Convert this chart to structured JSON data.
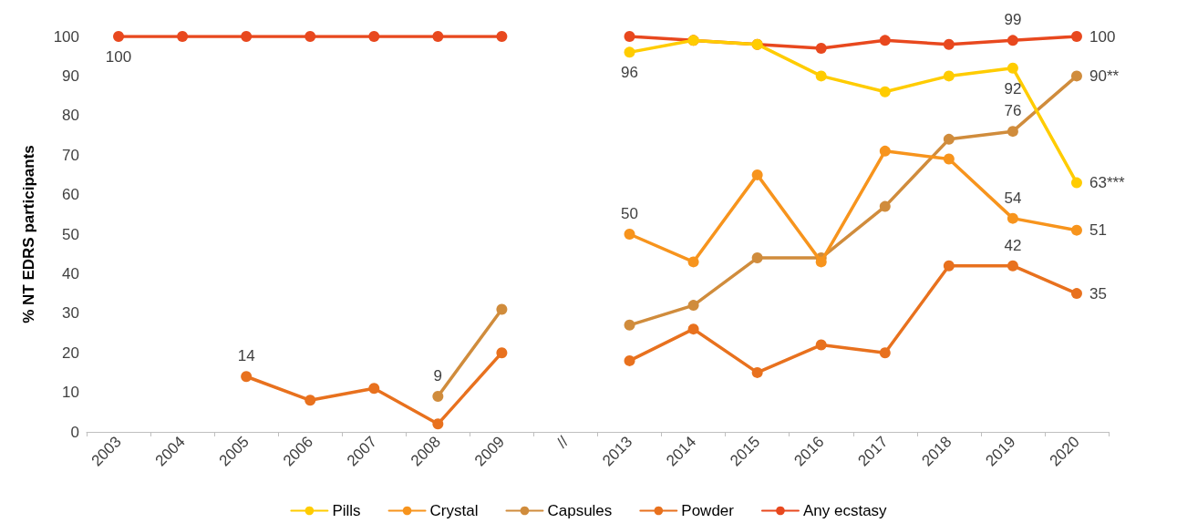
{
  "chart_data": {
    "type": "line",
    "ylabel": "% NT EDRS participants",
    "categories": [
      "2003",
      "2004",
      "2005",
      "2006",
      "2007",
      "2008",
      "2009",
      "//",
      "2013",
      "2014",
      "2015",
      "2016",
      "2017",
      "2018",
      "2019",
      "2020"
    ],
    "ylim": [
      0,
      100
    ],
    "yticks": [
      0,
      10,
      20,
      30,
      40,
      50,
      60,
      70,
      80,
      90,
      100
    ],
    "grid": false,
    "legend": "bottom",
    "marker": "circle",
    "line_style": "solid",
    "series": [
      {
        "name": "Pills",
        "color": "#ffcc00",
        "values": [
          null,
          null,
          null,
          null,
          null,
          null,
          null,
          null,
          96,
          99,
          98,
          90,
          86,
          90,
          92,
          63
        ],
        "value_labels": [
          null,
          null,
          null,
          null,
          null,
          null,
          null,
          null,
          "96",
          null,
          null,
          null,
          null,
          null,
          "92",
          "63***"
        ]
      },
      {
        "name": "Crystal",
        "color": "#f7941d",
        "values": [
          null,
          null,
          null,
          null,
          null,
          null,
          null,
          null,
          50,
          43,
          65,
          43,
          71,
          69,
          54,
          51
        ],
        "value_labels": [
          null,
          null,
          null,
          null,
          null,
          null,
          null,
          null,
          "50",
          null,
          null,
          null,
          null,
          null,
          "54",
          "51"
        ]
      },
      {
        "name": "Capsules",
        "color": "#d08c3c",
        "values": [
          null,
          null,
          null,
          null,
          null,
          9,
          31,
          null,
          27,
          32,
          44,
          44,
          57,
          74,
          76,
          90
        ],
        "value_labels": [
          null,
          null,
          null,
          null,
          null,
          "9",
          null,
          null,
          null,
          null,
          null,
          null,
          null,
          null,
          "76",
          "90**"
        ]
      },
      {
        "name": "Powder",
        "color": "#e8711e",
        "values": [
          null,
          null,
          14,
          8,
          11,
          2,
          20,
          null,
          18,
          26,
          15,
          22,
          20,
          42,
          42,
          35
        ],
        "value_labels": [
          null,
          null,
          "14",
          null,
          null,
          null,
          null,
          null,
          null,
          null,
          null,
          null,
          null,
          null,
          "42",
          "35"
        ]
      },
      {
        "name": "Any ecstasy",
        "color": "#e8481e",
        "values": [
          100,
          100,
          100,
          100,
          100,
          100,
          100,
          null,
          100,
          99,
          98,
          97,
          99,
          98,
          99,
          100
        ],
        "value_labels": [
          "100",
          null,
          null,
          null,
          null,
          null,
          null,
          null,
          null,
          null,
          null,
          null,
          null,
          null,
          "99",
          "100"
        ]
      }
    ]
  }
}
